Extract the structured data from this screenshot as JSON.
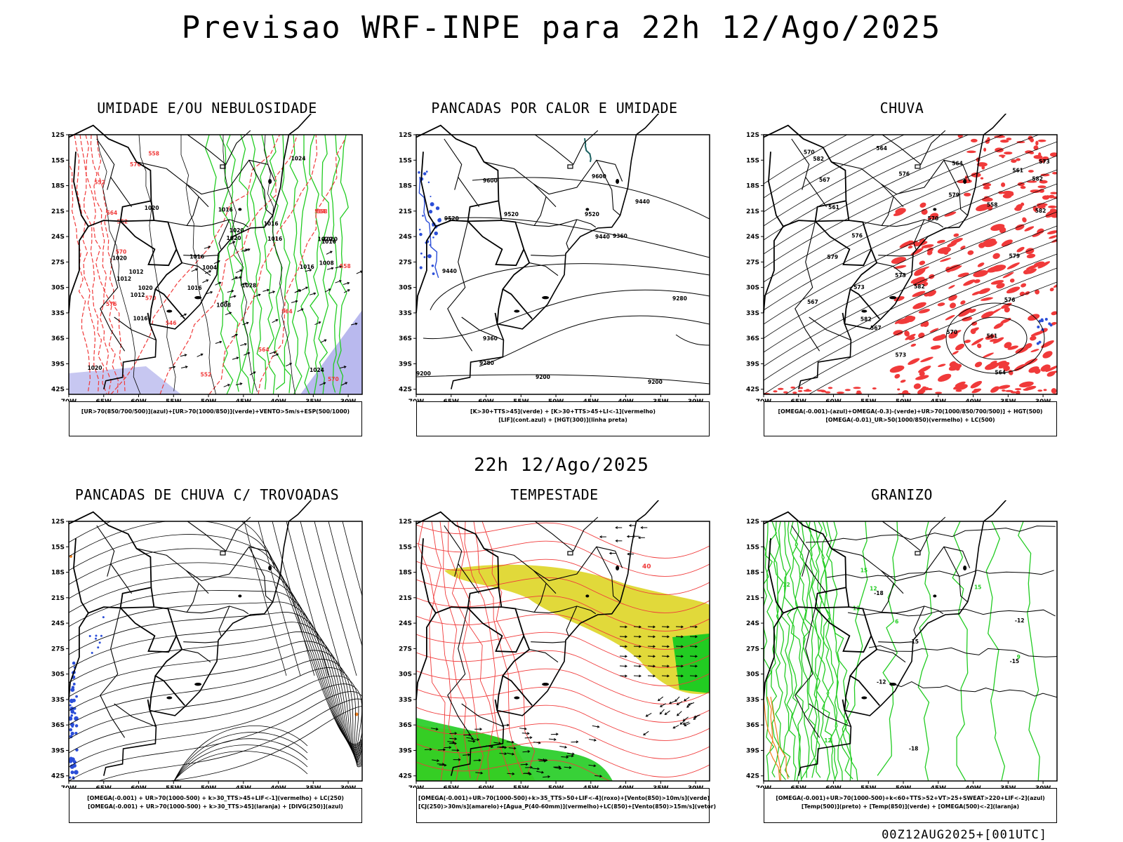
{
  "title": "Previsao WRF-INPE  para 22h 12/Ago/2025",
  "subtitle": "22h 12/Ago/2025",
  "run_stamp": "00Z12AUG2025+[001UTC]",
  "axes": {
    "lat_labels": [
      "12S",
      "15S",
      "18S",
      "21S",
      "24S",
      "27S",
      "30S",
      "33S",
      "36S",
      "39S",
      "42S"
    ],
    "lon_labels": [
      "70W",
      "65W",
      "60W",
      "55W",
      "50W",
      "45W",
      "40W",
      "35W",
      "30W"
    ]
  },
  "colors": {
    "red": "#f03a3a",
    "green": "#22cc22",
    "blue": "#2b4ed8",
    "lavender": "#b9b9ee",
    "yellow": "#e1d93a",
    "orange": "#f08020",
    "teal": "#1a6060"
  },
  "panels": [
    {
      "title": "UMIDADE E/OU NEBULOSIDADE",
      "legend": [
        "[UR>70(850/700/500)](azul)+[UR>70(1000/850)](verde)+VENTO>5m/s+ESP(500/1000)"
      ],
      "labels": {
        "black": [
          "1016",
          "1016",
          "1020",
          "1020",
          "1020",
          "1024",
          "1028",
          "1012",
          "1016",
          "1016",
          "1020",
          "1008",
          "1012",
          "1016",
          "1016",
          "1020",
          "1024",
          "1020",
          "1016",
          "1020",
          "1012",
          "1008",
          "1004",
          "1020",
          "1016"
        ],
        "red": [
          "570",
          "570",
          "564",
          "564",
          "576",
          "564",
          "558",
          "552",
          "552",
          "558",
          "552",
          "546",
          "570",
          "564",
          "558",
          "576"
        ]
      }
    },
    {
      "title": "PANCADAS POR CALOR E UMIDADE",
      "legend": [
        "[K>30+TTS>45](verde) + [K>30+TTS>45+LI<-1](vermelho)",
        "[LIF](cont.azul) + [HGT(300)](linha preta)"
      ],
      "labels": {
        "black": [
          "9600",
          "9600",
          "9520",
          "9520",
          "9520",
          "9440",
          "9440",
          "9360",
          "9360",
          "9280",
          "9280",
          "9200",
          "9200",
          "9200",
          "9440"
        ]
      }
    },
    {
      "title": "CHUVA",
      "legend": [
        "[OMEGA(-0.001)-(azul)+OMEGA(-0.3)-(verde)+UR>70(1000/850/700/500)] + HGT(500)",
        "[OMEGA(-0.01)_UR>50(1000/850)(vermelho) + LC(500)"
      ],
      "labels": {
        "black": [
          "582",
          "582",
          "582",
          "582",
          "579",
          "579",
          "576",
          "576",
          "573",
          "573",
          "570",
          "567",
          "564",
          "561",
          "561",
          "558",
          "564",
          "567",
          "570",
          "573",
          "576",
          "573",
          "570",
          "567",
          "564",
          "561",
          "582",
          "579"
        ]
      }
    },
    {
      "title": "PANCADAS DE CHUVA C/ TROVOADAS",
      "legend": [
        "[OMEGA(-0.001) + UR>70(1000-500) + k>30_TTS>45+LIF<-1](vermelho) + LC(250)",
        "[OMEGA(-0.001) + UR>70(1000-500) + k>30_TTS>45](laranja) + [DIVG(250)](azul)"
      ]
    },
    {
      "title": "TEMPESTADE",
      "legend": [
        "[OMEGA(-0.001)+UR>70(1000-500)+k>35_TTS>50+LIF<-4](roxo)+[Vento(850)>10m/s](verde)",
        "[CJ(250)>30m/s](amarelo)+[Agua_P(40-60mm)](vermelho)+LC(850)+[Vento(850)>15m/s](vetor)"
      ],
      "labels": {
        "red": [
          "40"
        ]
      }
    },
    {
      "title": "GRANIZO",
      "legend": [
        "[OMEGA(-0.001)+UR>70(1000-500)+k<60+TTS>52+VT>25+SWEAT>220+LIF<-2](azul)",
        "[Temp(500)](preto) + [Temp(850)](verde) + [OMEGA(500)<-2](laranja)"
      ],
      "labels": {
        "black": [
          "-12",
          "-15",
          "-18",
          "-15",
          "-18",
          "-12"
        ],
        "green": [
          "12",
          "12",
          "15",
          "15",
          "12",
          "6",
          "9",
          "12"
        ]
      }
    }
  ]
}
